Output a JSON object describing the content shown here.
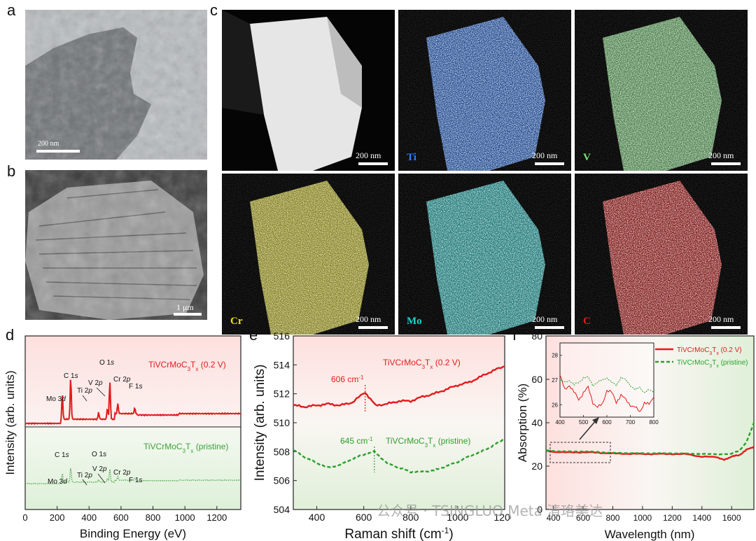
{
  "panels": {
    "a": {
      "label": "a",
      "scalebar": "200 nm"
    },
    "b": {
      "label": "b",
      "scalebar": "1 μm"
    },
    "c": {
      "label": "c",
      "tiles": [
        {
          "element": "",
          "scalebar": "200 nm",
          "color": "#ffffff"
        },
        {
          "element": "Ti",
          "scalebar": "200 nm",
          "color": "#2f7bff"
        },
        {
          "element": "V",
          "scalebar": "200 nm",
          "color": "#7be07b"
        },
        {
          "element": "Cr",
          "scalebar": "200 nm",
          "color": "#e8e020"
        },
        {
          "element": "Mo",
          "scalebar": "200 nm",
          "color": "#22d0d0"
        },
        {
          "element": "C",
          "scalebar": "200 nm",
          "color": "#e02020"
        }
      ]
    },
    "d": {
      "label": "d"
    },
    "e": {
      "label": "e"
    },
    "f": {
      "label": "f"
    }
  },
  "chart_data": [
    {
      "type": "line",
      "panel": "d",
      "xlabel": "Binding Energy (eV)",
      "ylabel": "Intensity (arb. units)",
      "xlim": [
        0,
        1350
      ],
      "xticks": [
        "0",
        "200",
        "400",
        "600",
        "800",
        "1000",
        "1200"
      ],
      "series": [
        {
          "name": "TiVCrMoC3Tx (0.2 V)",
          "color": "#e31a1c",
          "style": "solid",
          "peaks": [
            "Mo 3d",
            "C 1s",
            "Ti 2p",
            "V 2p",
            "O 1s",
            "Cr 2p",
            "F 1s"
          ]
        },
        {
          "name": "TiVCrMoC3Tx (pristine)",
          "color": "#3ca03c",
          "style": "dotted",
          "peaks": [
            "Mo 3d",
            "C 1s",
            "Ti 2p",
            "V 2p",
            "O 1s",
            "Cr 2p",
            "F 1s"
          ]
        }
      ]
    },
    {
      "type": "line",
      "panel": "e",
      "xlabel": "Raman shift (cm-1)",
      "ylabel": "Intensity (arb. units)",
      "xlim": [
        300,
        1200
      ],
      "ylim": [
        504,
        516
      ],
      "xticks": [
        "400",
        "600",
        "800",
        "1000",
        "1200"
      ],
      "yticks": [
        "504",
        "506",
        "508",
        "510",
        "512",
        "514",
        "516"
      ],
      "series": [
        {
          "name": "TiVCrMoC3Tx (0.2 V)",
          "color": "#e31a1c",
          "style": "solid",
          "x": [
            300,
            350,
            400,
            450,
            500,
            550,
            606,
            650,
            700,
            750,
            800,
            850,
            900,
            950,
            1000,
            1050,
            1100,
            1150,
            1200
          ],
          "y": [
            511.2,
            511.1,
            511.2,
            511.3,
            511.2,
            511.4,
            512.1,
            511.2,
            511.3,
            511.5,
            511.5,
            511.8,
            512.0,
            512.3,
            512.6,
            512.8,
            513.2,
            513.6,
            513.9
          ]
        },
        {
          "name": "TiVCrMoC3Tx (pristine)",
          "color": "#2ca02c",
          "style": "dashed",
          "x": [
            300,
            350,
            400,
            450,
            500,
            550,
            600,
            645,
            700,
            750,
            800,
            850,
            900,
            950,
            1000,
            1050,
            1100,
            1150,
            1200
          ],
          "y": [
            508.1,
            507.6,
            507.2,
            506.9,
            507.1,
            507.5,
            507.8,
            508.0,
            507.2,
            506.9,
            506.6,
            506.6,
            506.7,
            507.0,
            507.3,
            507.7,
            508.0,
            508.4,
            508.9
          ]
        }
      ],
      "annotations": [
        "606 cm-1",
        "645 cm-1"
      ]
    },
    {
      "type": "line",
      "panel": "f",
      "xlabel": "Wavelength (nm)",
      "ylabel": "Absorption (%)",
      "xlim": [
        350,
        1750
      ],
      "ylim": [
        0,
        80
      ],
      "xticks": [
        "400",
        "600",
        "800",
        "1000",
        "1200",
        "1400",
        "1600"
      ],
      "yticks": [
        "0",
        "20",
        "40",
        "60",
        "80"
      ],
      "series": [
        {
          "name": "TiVCrMoC3Tx (0.2 V)",
          "color": "#e31a1c",
          "style": "solid",
          "x": [
            350,
            400,
            500,
            600,
            700,
            800,
            900,
            1000,
            1100,
            1200,
            1300,
            1400,
            1500,
            1550,
            1600,
            1650,
            1700,
            1750
          ],
          "y": [
            27,
            26.6,
            26.3,
            26.4,
            26.2,
            25.8,
            25.7,
            25.6,
            25.6,
            25.6,
            25.5,
            24.3,
            24.2,
            22.8,
            24.5,
            25.0,
            27.5,
            29.0
          ]
        },
        {
          "name": "TiVCrMoC3Tx (pristine)",
          "color": "#2ca02c",
          "style": "dashed",
          "x": [
            350,
            400,
            500,
            600,
            700,
            800,
            900,
            1000,
            1100,
            1200,
            1300,
            1400,
            1500,
            1550,
            1600,
            1650,
            1700,
            1750
          ],
          "y": [
            27.2,
            27,
            26.7,
            26.8,
            26.5,
            26.1,
            26,
            25.9,
            25.9,
            25.9,
            25.8,
            25.6,
            25.5,
            25.4,
            25.8,
            27.0,
            31.0,
            40.0
          ]
        }
      ],
      "inset": {
        "xlim": [
          400,
          800
        ],
        "ylim": [
          25.5,
          28.5
        ],
        "xticks": [
          "400",
          "500",
          "600",
          "700",
          "800"
        ],
        "yticks": [
          "26",
          "27",
          "28"
        ],
        "series": [
          {
            "name": "TiVCrMoC3Tx (0.2 V)",
            "color": "#e31a1c",
            "x": [
              400,
              420,
              440,
              460,
              480,
              500,
              520,
              540,
              560,
              580,
              600,
              620,
              640,
              660,
              680,
              700,
              720,
              740,
              760,
              780,
              800
            ],
            "y": [
              27.2,
              26.6,
              26.8,
              26.5,
              26.2,
              26.5,
              26.7,
              26.1,
              25.9,
              26.0,
              26.6,
              26.5,
              26.1,
              26.4,
              26.2,
              26.0,
              25.9,
              25.7,
              26.1,
              26.0,
              26.3
            ]
          },
          {
            "name": "TiVCrMoC3Tx (pristine)",
            "color": "#2ca02c",
            "x": [
              400,
              420,
              440,
              460,
              480,
              500,
              520,
              540,
              560,
              580,
              600,
              620,
              640,
              660,
              680,
              700,
              720,
              740,
              760,
              780,
              800
            ],
            "y": [
              27.0,
              26.9,
              27.0,
              26.8,
              26.9,
              27.1,
              27.1,
              26.8,
              26.9,
              27.0,
              27.1,
              26.9,
              26.8,
              27.1,
              27.0,
              26.8,
              26.6,
              26.7,
              26.5,
              26.6,
              26.5
            ]
          }
        ]
      }
    }
  ],
  "watermark": "公众号 · TSINGLUO Meta 清珞美达"
}
